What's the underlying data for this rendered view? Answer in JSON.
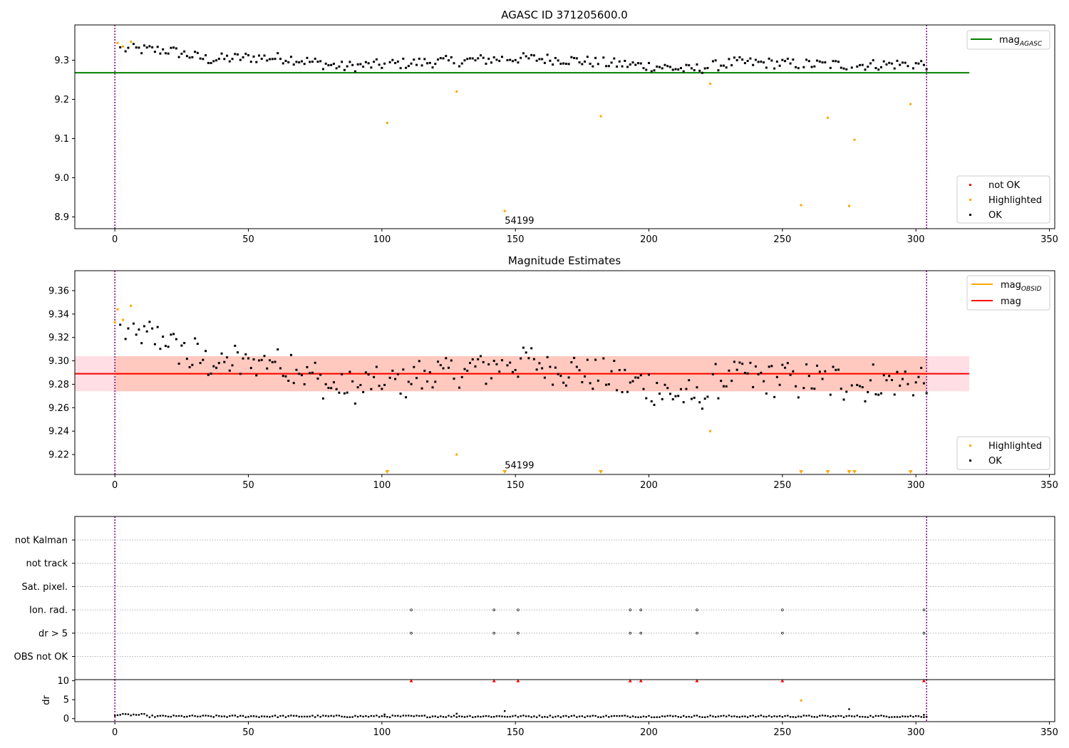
{
  "chart_data": [
    {
      "type": "scatter",
      "title": "AGASC ID 371205600.0",
      "xlim": [
        -15,
        352
      ],
      "ylim": [
        8.87,
        9.39
      ],
      "xticks": [
        0,
        50,
        100,
        150,
        200,
        250,
        300,
        350
      ],
      "yticks": [
        8.9,
        9.0,
        9.1,
        9.2,
        9.3
      ],
      "ytick_labels": [
        "8.9",
        "9.0",
        "9.1",
        "9.2",
        "9.3"
      ],
      "ref_line": {
        "name": "mag_AGASC",
        "legend_main": "mag",
        "legend_sub": "AGASC",
        "value": 9.268,
        "x_range": [
          -15,
          320
        ],
        "color": "#008000"
      },
      "vlines": [
        0,
        304
      ],
      "annotation": {
        "text": "54199",
        "x": 146,
        "y": 8.89
      },
      "legend_lines": [
        {
          "main": "mag",
          "sub": "AGASC",
          "color": "#008000"
        }
      ],
      "legend_points": [
        {
          "label": "not OK",
          "color": "#ff0000"
        },
        {
          "label": "Highlighted",
          "color": "#ffa500"
        },
        {
          "label": "OK",
          "color": "#000000"
        }
      ],
      "series": [
        {
          "name": "Highlighted",
          "color": "#ffa500",
          "points": [
            [
              1,
              9.344
            ],
            [
              3,
              9.335
            ],
            [
              6,
              9.347
            ],
            [
              102,
              9.14
            ],
            [
              128,
              9.22
            ],
            [
              146,
              8.915
            ],
            [
              182,
              9.157
            ],
            [
              223,
              9.24
            ],
            [
              257,
              8.93
            ],
            [
              267,
              9.153
            ],
            [
              275,
              8.928
            ],
            [
              277,
              9.097
            ],
            [
              298,
              9.188
            ]
          ]
        }
      ]
    },
    {
      "type": "scatter",
      "title": "Magnitude Estimates",
      "xlim": [
        -15,
        352
      ],
      "ylim": [
        9.203,
        9.377
      ],
      "xticks": [
        0,
        50,
        100,
        150,
        200,
        250,
        300,
        350
      ],
      "yticks": [
        9.22,
        9.24,
        9.26,
        9.28,
        9.3,
        9.32,
        9.34,
        9.36
      ],
      "ytick_labels": [
        "9.22",
        "9.24",
        "9.26",
        "9.28",
        "9.30",
        "9.32",
        "9.34",
        "9.36"
      ],
      "mag_line": {
        "name": "mag",
        "value": 9.289,
        "band": [
          9.274,
          9.304
        ],
        "x_range": [
          -15,
          320
        ],
        "color": "#ff0000"
      },
      "obsid_line": {
        "name": "mag_OBSID",
        "value": 9.289,
        "band": [
          9.274,
          9.304
        ],
        "x_range": [
          0,
          304
        ],
        "color": "#ffa500"
      },
      "vlines": [
        0,
        304
      ],
      "annotation": {
        "text": "54199",
        "x": 146,
        "y": 9.207
      },
      "legend_lines": [
        {
          "main": "mag",
          "sub": "OBSID",
          "color": "#ffa500"
        },
        {
          "main": "mag",
          "sub": "",
          "color": "#ff0000"
        }
      ],
      "legend_points": [
        {
          "label": "Highlighted",
          "color": "#ffa500"
        },
        {
          "label": "OK",
          "color": "#000000"
        }
      ],
      "series": [
        {
          "name": "Highlighted",
          "color": "#ffa500",
          "points": [
            [
              0,
              9.333
            ],
            [
              1,
              9.344
            ],
            [
              3,
              9.335
            ],
            [
              6,
              9.347
            ],
            [
              128,
              9.22
            ],
            [
              223,
              9.24
            ]
          ]
        }
      ],
      "offscale_markers_x": [
        102,
        146,
        182,
        257,
        267,
        275,
        277,
        298
      ]
    },
    {
      "type": "scatter",
      "title": "",
      "categories": [
        "not Kalman",
        "not track",
        "Sat. pixel.",
        "Ion. rad.",
        "dr > 5",
        "OBS not OK"
      ],
      "xlim": [
        -15,
        352
      ],
      "vlines": [
        0,
        304
      ],
      "flag_points": {
        "Ion. rad.": [
          111,
          142,
          151,
          193,
          197,
          218,
          250,
          303
        ],
        "dr > 5": [
          111,
          142,
          151,
          193,
          197,
          218,
          250,
          303
        ]
      }
    },
    {
      "type": "scatter",
      "title": "",
      "ylabel": "dr",
      "xlim": [
        -15,
        352
      ],
      "ylim": [
        -0.8,
        10.3
      ],
      "xticks": [
        0,
        50,
        100,
        150,
        200,
        250,
        300,
        350
      ],
      "yticks": [
        0,
        5,
        10
      ],
      "ytick_labels": [
        "0",
        "5",
        "10"
      ],
      "vlines": [
        0,
        304
      ],
      "clipped_red_x": [
        111,
        142,
        151,
        193,
        197,
        218,
        250,
        303
      ],
      "series": [
        {
          "name": "dr spikes",
          "color": "#000000",
          "points": [
            [
              146,
              2.0
            ],
            [
              275,
              2.5
            ],
            [
              128,
              1.3
            ],
            [
              101,
              1.1
            ],
            [
              303,
              1.0
            ]
          ]
        },
        {
          "name": "dr orange",
          "color": "#ffa500",
          "points": [
            [
              257,
              4.8
            ]
          ]
        }
      ]
    }
  ]
}
